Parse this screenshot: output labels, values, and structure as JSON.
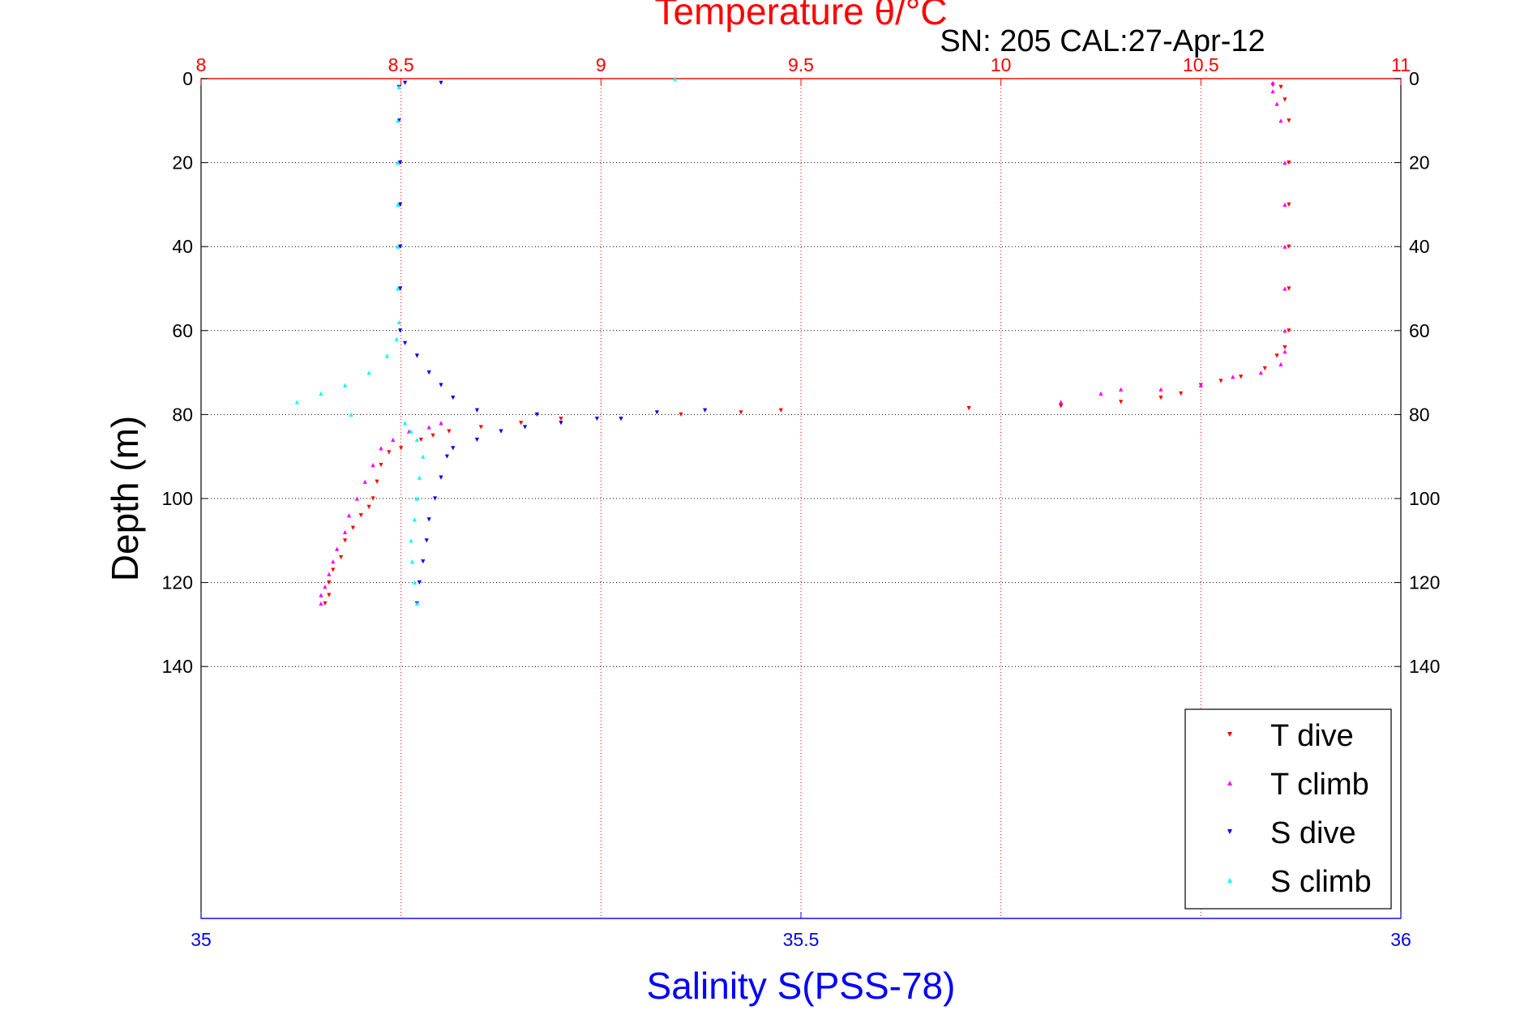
{
  "chart_data": {
    "type": "scatter",
    "title": "Temperature θ/°C",
    "subtitle": "SN: 205  CAL:27-Apr-12",
    "xlabel_top": "Temperature θ/°C",
    "xlabel_bottom": "Salinity S(PSS-78)",
    "ylabel": "Depth (m)",
    "temperature_axis": {
      "range": [
        8,
        11
      ],
      "ticks": [
        "8",
        "8.5",
        "9",
        "9.5",
        "10",
        "10.5",
        "11"
      ]
    },
    "salinity_axis": {
      "range": [
        35,
        36
      ],
      "ticks": [
        "35",
        "35.5",
        "36"
      ]
    },
    "depth_axis": {
      "range": [
        0,
        200
      ],
      "reversed": true,
      "ticks": [
        "0",
        "20",
        "40",
        "60",
        "80",
        "100",
        "120",
        "140"
      ]
    },
    "grid": true,
    "legend_position": "bottom-right",
    "series": [
      {
        "name": "T dive",
        "axis": "temperature",
        "marker": "triangle-down",
        "color": "#ff0000",
        "points": [
          [
            10.68,
            1.5
          ],
          [
            10.7,
            2
          ],
          [
            10.71,
            5
          ],
          [
            10.72,
            10
          ],
          [
            10.72,
            20
          ],
          [
            10.72,
            30
          ],
          [
            10.72,
            40
          ],
          [
            10.72,
            50
          ],
          [
            10.72,
            60
          ],
          [
            10.71,
            64
          ],
          [
            10.69,
            66
          ],
          [
            10.66,
            69
          ],
          [
            10.6,
            71
          ],
          [
            10.55,
            72
          ],
          [
            10.5,
            73
          ],
          [
            10.45,
            75
          ],
          [
            10.4,
            76
          ],
          [
            10.3,
            77
          ],
          [
            10.15,
            78
          ],
          [
            9.92,
            78.5
          ],
          [
            9.45,
            79
          ],
          [
            9.35,
            79.5
          ],
          [
            9.2,
            80
          ],
          [
            9.05,
            81
          ],
          [
            8.9,
            81
          ],
          [
            8.8,
            82
          ],
          [
            8.7,
            83
          ],
          [
            8.62,
            84
          ],
          [
            8.58,
            85
          ],
          [
            8.55,
            86
          ],
          [
            8.5,
            88
          ],
          [
            8.47,
            89
          ],
          [
            8.45,
            92
          ],
          [
            8.44,
            96
          ],
          [
            8.43,
            100
          ],
          [
            8.42,
            102
          ],
          [
            8.4,
            104
          ],
          [
            8.38,
            107
          ],
          [
            8.36,
            110
          ],
          [
            8.35,
            114
          ],
          [
            8.33,
            117
          ],
          [
            8.32,
            120
          ],
          [
            8.32,
            123
          ],
          [
            8.31,
            125
          ]
        ]
      },
      {
        "name": "T climb",
        "axis": "temperature",
        "marker": "triangle-up",
        "color": "#ff00ff",
        "points": [
          [
            8.3,
            125
          ],
          [
            8.3,
            123
          ],
          [
            8.31,
            121
          ],
          [
            8.32,
            118
          ],
          [
            8.33,
            115
          ],
          [
            8.34,
            112
          ],
          [
            8.36,
            108
          ],
          [
            8.37,
            104
          ],
          [
            8.39,
            100
          ],
          [
            8.41,
            96
          ],
          [
            8.43,
            92
          ],
          [
            8.45,
            88
          ],
          [
            8.48,
            86
          ],
          [
            8.52,
            84
          ],
          [
            8.57,
            83
          ],
          [
            8.6,
            82
          ],
          [
            10.15,
            77
          ],
          [
            10.25,
            75
          ],
          [
            10.3,
            74
          ],
          [
            10.4,
            74
          ],
          [
            10.5,
            73
          ],
          [
            10.58,
            71
          ],
          [
            10.65,
            70
          ],
          [
            10.7,
            68
          ],
          [
            10.71,
            65
          ],
          [
            10.71,
            60
          ],
          [
            10.71,
            50
          ],
          [
            10.71,
            40
          ],
          [
            10.71,
            30
          ],
          [
            10.71,
            20
          ],
          [
            10.7,
            10
          ],
          [
            10.69,
            6
          ],
          [
            10.68,
            3
          ],
          [
            10.68,
            1
          ]
        ]
      },
      {
        "name": "S dive",
        "axis": "salinity",
        "marker": "triangle-down",
        "color": "#0000ff",
        "points": [
          [
            35.17,
            1
          ],
          [
            35.2,
            1
          ],
          [
            35.165,
            2
          ],
          [
            35.165,
            10
          ],
          [
            35.166,
            20
          ],
          [
            35.166,
            30
          ],
          [
            35.166,
            40
          ],
          [
            35.166,
            50
          ],
          [
            35.166,
            60
          ],
          [
            35.17,
            63
          ],
          [
            35.18,
            66
          ],
          [
            35.19,
            70
          ],
          [
            35.2,
            73
          ],
          [
            35.21,
            76
          ],
          [
            35.23,
            79
          ],
          [
            35.28,
            80
          ],
          [
            35.33,
            81
          ],
          [
            35.38,
            79.5
          ],
          [
            35.42,
            79
          ],
          [
            35.35,
            81
          ],
          [
            35.3,
            82
          ],
          [
            35.27,
            83
          ],
          [
            35.25,
            84
          ],
          [
            35.23,
            86
          ],
          [
            35.21,
            88
          ],
          [
            35.205,
            90
          ],
          [
            35.2,
            95
          ],
          [
            35.195,
            100
          ],
          [
            35.19,
            105
          ],
          [
            35.188,
            110
          ],
          [
            35.185,
            115
          ],
          [
            35.182,
            120
          ],
          [
            35.18,
            125
          ]
        ]
      },
      {
        "name": "S climb",
        "axis": "salinity",
        "marker": "triangle-up",
        "color": "#00ffff",
        "points": [
          [
            35.18,
            125
          ],
          [
            35.178,
            120
          ],
          [
            35.176,
            115
          ],
          [
            35.175,
            110
          ],
          [
            35.178,
            105
          ],
          [
            35.18,
            100
          ],
          [
            35.182,
            95
          ],
          [
            35.185,
            90
          ],
          [
            35.18,
            86
          ],
          [
            35.175,
            84
          ],
          [
            35.17,
            82
          ],
          [
            35.125,
            80
          ],
          [
            35.08,
            77
          ],
          [
            35.1,
            75
          ],
          [
            35.12,
            73
          ],
          [
            35.14,
            70
          ],
          [
            35.155,
            66
          ],
          [
            35.163,
            62
          ],
          [
            35.165,
            58
          ],
          [
            35.164,
            50
          ],
          [
            35.164,
            40
          ],
          [
            35.164,
            30
          ],
          [
            35.164,
            20
          ],
          [
            35.164,
            10
          ],
          [
            35.165,
            2
          ],
          [
            35.395,
            0
          ]
        ]
      }
    ]
  }
}
